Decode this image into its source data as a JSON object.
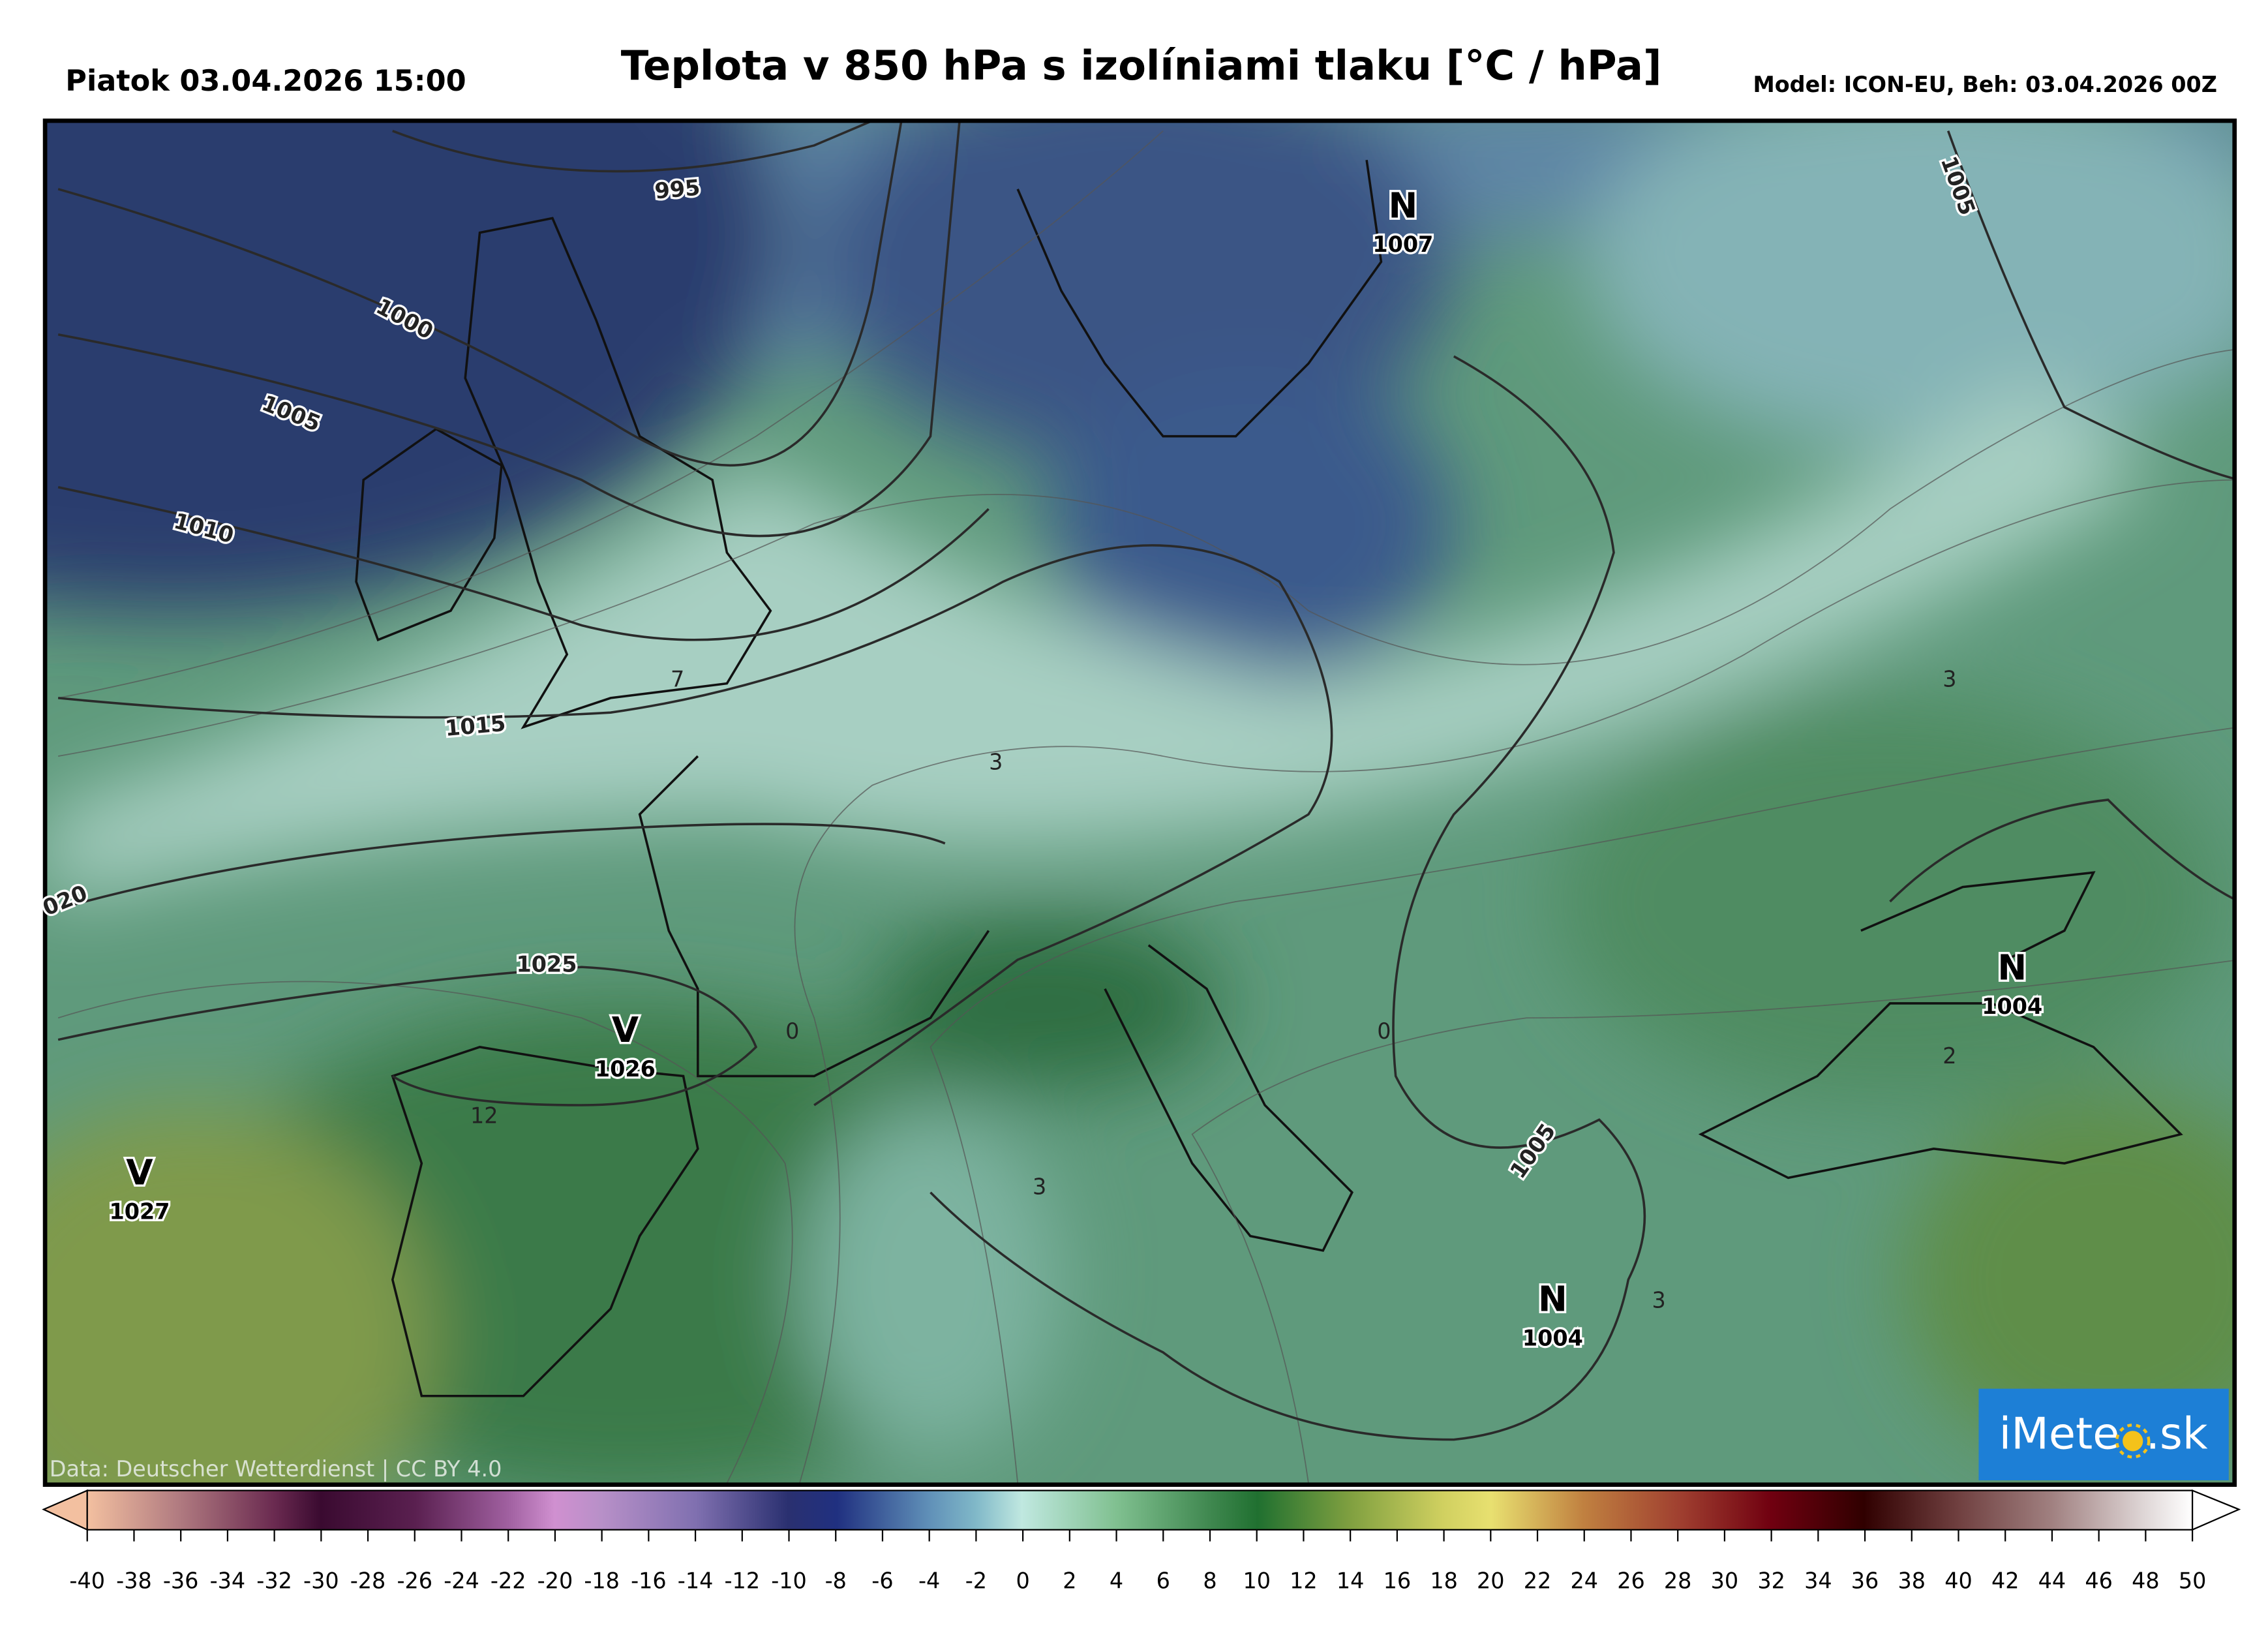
{
  "header": {
    "date": "Piatok 03.04.2026 15:00",
    "title": "Teplota v 850 hPa s izolíniami tlaku [°C / hPa]",
    "model": "Model: ICON-EU, Beh: 03.04.2026 00Z"
  },
  "map": {
    "isobar_labels": [
      "995",
      "1000",
      "1005",
      "1010",
      "1015",
      "020",
      "1025",
      "1005",
      "1005"
    ],
    "temperature_labels": [
      "7",
      "3",
      "0",
      "0",
      "12",
      "3",
      "3",
      "2",
      "3"
    ],
    "centers": [
      {
        "letter": "N",
        "value": "1007"
      },
      {
        "letter": "N",
        "value": "1004"
      },
      {
        "letter": "N",
        "value": "1004"
      },
      {
        "letter": "V",
        "value": "1026"
      },
      {
        "letter": "V",
        "value": "1027"
      }
    ],
    "attribution": "Data: Deutscher Wetterdienst | CC BY 4.0",
    "logo": [
      "iMete",
      ".sk"
    ]
  },
  "colorbar": {
    "ticks": [
      -40,
      -38,
      -36,
      -34,
      -32,
      -30,
      -28,
      -26,
      -24,
      -22,
      -20,
      -18,
      -16,
      -14,
      -12,
      -10,
      -8,
      -6,
      -4,
      -2,
      0,
      2,
      4,
      6,
      8,
      10,
      12,
      14,
      16,
      18,
      20,
      22,
      24,
      26,
      28,
      30,
      32,
      34,
      36,
      38,
      40,
      42,
      44,
      46,
      48,
      50
    ]
  }
}
